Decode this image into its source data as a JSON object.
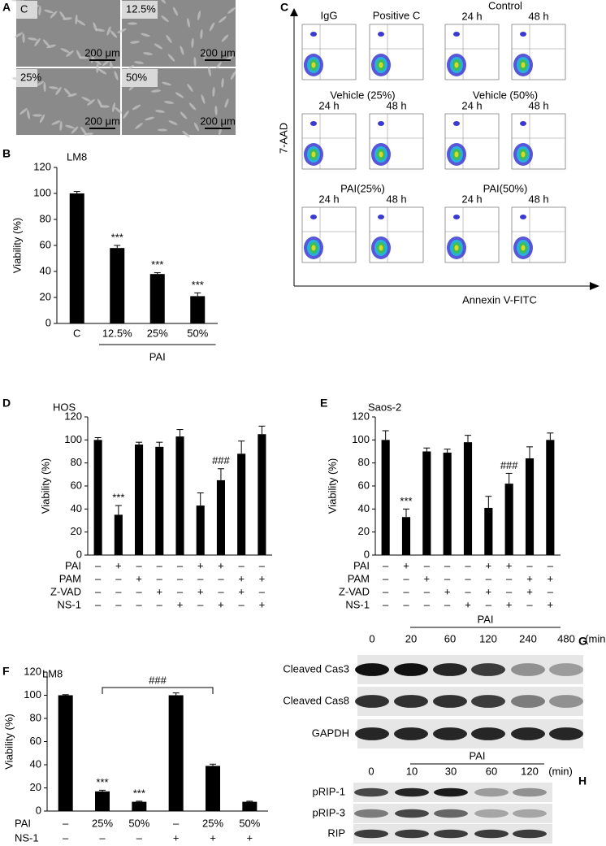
{
  "chart_data": [
    {
      "panel": "B",
      "type": "bar",
      "title": "LM8",
      "y_label": "Viability (%)",
      "categories": [
        "C",
        "12.5%",
        "25%",
        "50%"
      ],
      "values": [
        100,
        58,
        38,
        21
      ],
      "errors": [
        1.5,
        2,
        1,
        2.5
      ],
      "significance": [
        null,
        "***",
        "***",
        "***"
      ],
      "group_label": "PAI",
      "color": "#000000",
      "ylim": [
        0,
        120
      ],
      "yticks": [
        0,
        20,
        40,
        60,
        80,
        100,
        120
      ]
    },
    {
      "panel": "D",
      "type": "bar",
      "title": "HOS",
      "y_label": "Viability (%)",
      "values": [
        100,
        35,
        96,
        94,
        103,
        43,
        65,
        88,
        105
      ],
      "errors": [
        2,
        8,
        2,
        4,
        6,
        11,
        10,
        11,
        7
      ],
      "significance": [
        null,
        "***",
        null,
        null,
        null,
        null,
        "###",
        null,
        null
      ],
      "conditions": [
        {
          "name": "PAI",
          "values": [
            "–",
            "+",
            "–",
            "–",
            "–",
            "+",
            "+",
            "–",
            "–"
          ]
        },
        {
          "name": "PAM",
          "values": [
            "–",
            "–",
            "+",
            "–",
            "–",
            "–",
            "–",
            "+",
            "+"
          ]
        },
        {
          "name": "Z-VAD",
          "values": [
            "–",
            "–",
            "–",
            "+",
            "–",
            "+",
            "–",
            "+",
            "–"
          ]
        },
        {
          "name": "NS-1",
          "values": [
            "–",
            "–",
            "–",
            "–",
            "+",
            "–",
            "+",
            "–",
            "+"
          ]
        }
      ],
      "color": "#000000",
      "ylim": [
        0,
        120
      ],
      "yticks": [
        0,
        20,
        40,
        60,
        80,
        100,
        120
      ]
    },
    {
      "panel": "E",
      "type": "bar",
      "title": "Saos-2",
      "y_label": "Viability (%)",
      "values": [
        100,
        33,
        90,
        89,
        98,
        41,
        62,
        84,
        100
      ],
      "errors": [
        8,
        7,
        3,
        3,
        6,
        10,
        9,
        10,
        6
      ],
      "significance": [
        null,
        "***",
        null,
        null,
        null,
        null,
        "###",
        null,
        null
      ],
      "conditions": [
        {
          "name": "PAI",
          "values": [
            "–",
            "+",
            "–",
            "–",
            "–",
            "+",
            "+",
            "–",
            "–"
          ]
        },
        {
          "name": "PAM",
          "values": [
            "–",
            "–",
            "+",
            "–",
            "–",
            "–",
            "–",
            "+",
            "+"
          ]
        },
        {
          "name": "Z-VAD",
          "values": [
            "–",
            "–",
            "–",
            "+",
            "–",
            "+",
            "–",
            "+",
            "–"
          ]
        },
        {
          "name": "NS-1",
          "values": [
            "–",
            "–",
            "–",
            "–",
            "+",
            "–",
            "+",
            "–",
            "+"
          ]
        }
      ],
      "color": "#000000",
      "ylim": [
        0,
        120
      ],
      "yticks": [
        0,
        20,
        40,
        60,
        80,
        100,
        120
      ]
    },
    {
      "panel": "F",
      "type": "bar",
      "title": "LM8",
      "y_label": "Viability (%)",
      "values": [
        100,
        17,
        8,
        100,
        39,
        8
      ],
      "errors": [
        0.5,
        1,
        0.5,
        2,
        1.5,
        0.5
      ],
      "significance": [
        null,
        "***",
        "***",
        null,
        null,
        null
      ],
      "bracket_label": "###",
      "conditions": [
        {
          "name": "PAI",
          "values": [
            "–",
            "25%",
            "50%",
            "–",
            "25%",
            "50%"
          ]
        },
        {
          "name": "NS-1",
          "values": [
            "–",
            "–",
            "–",
            "+",
            "+",
            "+"
          ]
        }
      ],
      "color": "#000000",
      "ylim": [
        0,
        120
      ],
      "yticks": [
        0,
        20,
        40,
        60,
        80,
        100,
        120
      ]
    }
  ],
  "panel_a": {
    "letter": "A",
    "images": [
      {
        "label": "C",
        "scale": "200 μm"
      },
      {
        "label": "12.5%",
        "scale": "200 μm"
      },
      {
        "label": "25%",
        "scale": "200 μm"
      },
      {
        "label": "50%",
        "scale": "200 μm"
      }
    ]
  },
  "panel_c": {
    "letter": "C",
    "y_label": "7-AAD",
    "x_label": "Annexin V-FITC",
    "rows": [
      {
        "groups": [
          {
            "label": "IgG"
          },
          {
            "label": "Positive C"
          },
          {
            "label": "Control",
            "times": [
              "24 h",
              "48 h"
            ]
          }
        ]
      },
      {
        "groups": [
          {
            "label": "Vehicle (25%)",
            "times": [
              "24 h",
              "48 h"
            ]
          },
          {
            "label": "Vehicle (50%)",
            "times": [
              "24 h",
              "48 h"
            ]
          }
        ]
      },
      {
        "groups": [
          {
            "label": "PAI(25%)",
            "times": [
              "24 h",
              "48 h"
            ]
          },
          {
            "label": "PAI(50%)",
            "times": [
              "24 h",
              "48 h"
            ]
          }
        ]
      }
    ]
  },
  "panel_g": {
    "letter": "G",
    "treatment": "PAI",
    "lanes": [
      "0",
      "20",
      "60",
      "120",
      "240",
      "480"
    ],
    "unit": "(min)",
    "rows": [
      "Cleaved Cas3",
      "Cleaved Cas8",
      "GAPDH"
    ]
  },
  "panel_h": {
    "letter": "H",
    "treatment": "PAI",
    "lanes": [
      "0",
      "10",
      "30",
      "60",
      "120"
    ],
    "unit": "(min)",
    "rows": [
      "pRIP-1",
      "pRIP-3",
      "RIP"
    ]
  }
}
